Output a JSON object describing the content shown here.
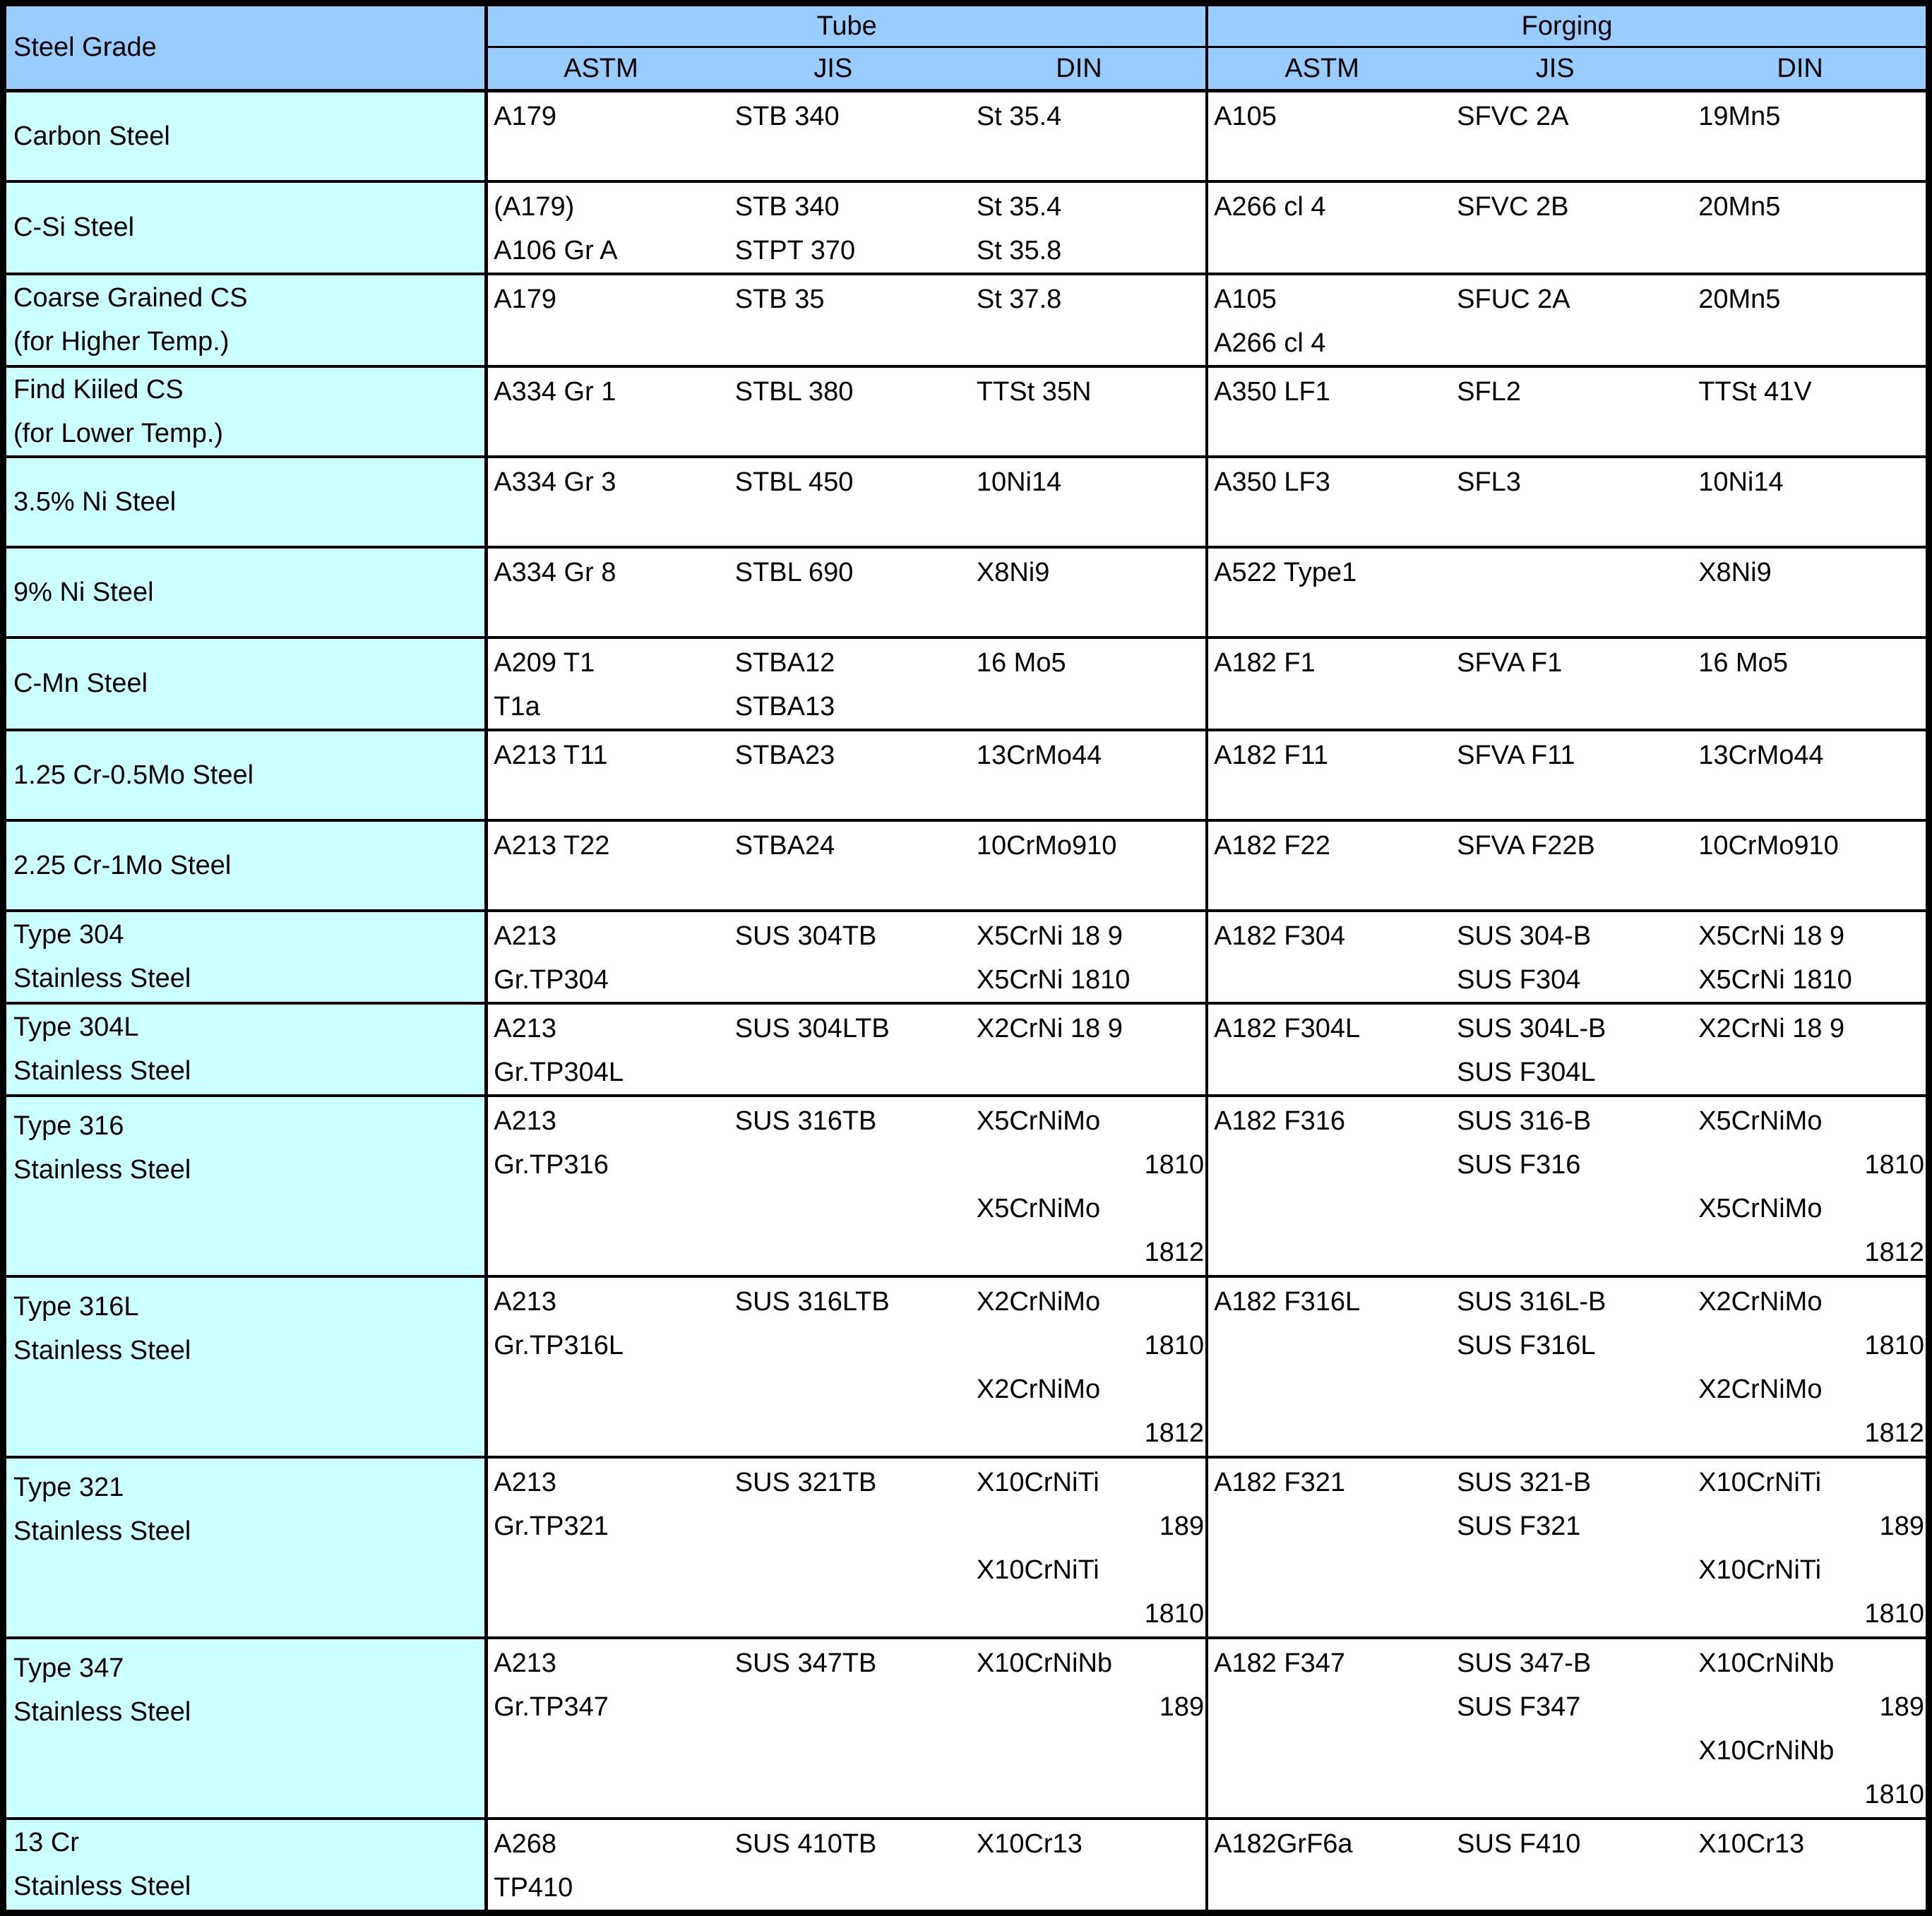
{
  "table": {
    "corner_header": "Steel Grade",
    "group_headers": [
      "Tube",
      "Forging"
    ],
    "subheaders": [
      "ASTM",
      "JIS",
      "DIN",
      "ASTM",
      "JIS",
      "DIN"
    ],
    "colors": {
      "header_bg": "#99CCFF",
      "label_bg": "#CCFFFF",
      "grid": "#000000",
      "text": "#000000"
    },
    "rows": [
      {
        "label_lines": [
          "Carbon Steel"
        ],
        "cells": [
          [
            "A179"
          ],
          [
            "STB 340"
          ],
          [
            "St 35.4"
          ],
          [
            "A105"
          ],
          [
            "SFVC 2A"
          ],
          [
            "19Mn5"
          ]
        ]
      },
      {
        "label_lines": [
          "C-Si Steel"
        ],
        "cells": [
          [
            "(A179)",
            "A106 Gr A"
          ],
          [
            "STB 340",
            "STPT 370"
          ],
          [
            "St 35.4",
            "St 35.8"
          ],
          [
            "A266 cl 4"
          ],
          [
            "SFVC 2B"
          ],
          [
            "20Mn5"
          ]
        ]
      },
      {
        "label_lines": [
          "Coarse Grained CS",
          "(for Higher Temp.)"
        ],
        "cells": [
          [
            "A179"
          ],
          [
            "STB 35"
          ],
          [
            "St 37.8"
          ],
          [
            "A105",
            "A266 cl 4"
          ],
          [
            "SFUC 2A"
          ],
          [
            "20Mn5"
          ]
        ]
      },
      {
        "label_lines": [
          "Find Kiiled CS",
          "(for Lower Temp.)"
        ],
        "cells": [
          [
            "A334 Gr 1"
          ],
          [
            "STBL 380"
          ],
          [
            "TTSt 35N"
          ],
          [
            "A350 LF1"
          ],
          [
            "SFL2"
          ],
          [
            "TTSt 41V"
          ]
        ]
      },
      {
        "label_lines": [
          "3.5% Ni Steel"
        ],
        "cells": [
          [
            "A334 Gr 3"
          ],
          [
            "STBL 450"
          ],
          [
            "10Ni14"
          ],
          [
            "A350 LF3"
          ],
          [
            "SFL3"
          ],
          [
            "10Ni14"
          ]
        ]
      },
      {
        "label_lines": [
          "9% Ni Steel"
        ],
        "cells": [
          [
            "A334 Gr 8"
          ],
          [
            "STBL 690"
          ],
          [
            "X8Ni9"
          ],
          [
            "A522 Type1"
          ],
          [],
          [
            "X8Ni9"
          ]
        ]
      },
      {
        "label_lines": [
          "C-Mn Steel"
        ],
        "cells": [
          [
            "A209 T1",
            "T1a"
          ],
          [
            "STBA12",
            "STBA13"
          ],
          [
            "16 Mo5"
          ],
          [
            "A182 F1"
          ],
          [
            "SFVA F1"
          ],
          [
            "16 Mo5"
          ]
        ]
      },
      {
        "label_lines": [
          "1.25 Cr-0.5Mo Steel"
        ],
        "cells": [
          [
            "A213 T11"
          ],
          [
            "STBA23"
          ],
          [
            "13CrMo44"
          ],
          [
            "A182 F11"
          ],
          [
            "SFVA F11"
          ],
          [
            "13CrMo44"
          ]
        ]
      },
      {
        "label_lines": [
          "2.25 Cr-1Mo Steel"
        ],
        "cells": [
          [
            "A213 T22"
          ],
          [
            "STBA24"
          ],
          [
            "10CrMo910"
          ],
          [
            "A182 F22"
          ],
          [
            "SFVA F22B"
          ],
          [
            "10CrMo910"
          ]
        ]
      },
      {
        "label_lines": [
          "Type 304",
          "Stainless Steel"
        ],
        "cells": [
          [
            "A213",
            "Gr.TP304"
          ],
          [
            "SUS 304TB"
          ],
          [
            "X5CrNi 18 9",
            "X5CrNi 1810"
          ],
          [
            "A182 F304"
          ],
          [
            "SUS 304-B",
            "SUS F304"
          ],
          [
            "X5CrNi 18 9",
            "X5CrNi 1810"
          ]
        ]
      },
      {
        "label_lines": [
          "Type 304L",
          "Stainless Steel"
        ],
        "cells": [
          [
            "A213",
            "Gr.TP304L"
          ],
          [
            "SUS 304LTB"
          ],
          [
            "X2CrNi 18 9"
          ],
          [
            "A182 F304L"
          ],
          [
            "SUS 304L-B",
            "SUS F304L"
          ],
          [
            "X2CrNi 18 9"
          ]
        ]
      },
      {
        "label_lines": [
          "Type 316",
          "Stainless Steel"
        ],
        "cells": [
          [
            "A213",
            "Gr.TP316"
          ],
          [
            "SUS 316TB"
          ],
          [
            "X5CrNiMo",
            "1810",
            "X5CrNiMo",
            "1812"
          ],
          [
            "A182 F316"
          ],
          [
            "SUS 316-B",
            "SUS F316"
          ],
          [
            "X5CrNiMo",
            "1810",
            "X5CrNiMo",
            "1812"
          ]
        ]
      },
      {
        "label_lines": [
          "Type 316L",
          "Stainless Steel"
        ],
        "cells": [
          [
            "A213",
            "Gr.TP316L"
          ],
          [
            "SUS 316LTB"
          ],
          [
            "X2CrNiMo",
            "1810",
            "X2CrNiMo",
            "1812"
          ],
          [
            "A182 F316L"
          ],
          [
            "SUS 316L-B",
            "SUS F316L"
          ],
          [
            "X2CrNiMo",
            "1810",
            "X2CrNiMo",
            "1812"
          ]
        ]
      },
      {
        "label_lines": [
          "Type 321",
          "Stainless Steel"
        ],
        "cells": [
          [
            "A213",
            "Gr.TP321"
          ],
          [
            "SUS 321TB"
          ],
          [
            "X10CrNiTi",
            "189",
            "X10CrNiTi",
            "1810"
          ],
          [
            "A182 F321"
          ],
          [
            "SUS 321-B",
            "SUS F321"
          ],
          [
            "X10CrNiTi",
            "189",
            "X10CrNiTi",
            "1810"
          ]
        ]
      },
      {
        "label_lines": [
          "Type 347",
          "Stainless Steel"
        ],
        "cells": [
          [
            "A213",
            "Gr.TP347"
          ],
          [
            "SUS 347TB"
          ],
          [
            "X10CrNiNb",
            "189"
          ],
          [
            "A182 F347"
          ],
          [
            "SUS 347-B",
            "SUS F347"
          ],
          [
            "X10CrNiNb",
            "189",
            "X10CrNiNb",
            "1810"
          ]
        ]
      },
      {
        "label_lines": [
          "13 Cr",
          "Stainless Steel"
        ],
        "cells": [
          [
            "A268",
            "TP410"
          ],
          [
            "SUS 410TB"
          ],
          [
            "X10Cr13"
          ],
          [
            "A182GrF6a"
          ],
          [
            "SUS F410"
          ],
          [
            "X10Cr13"
          ]
        ]
      }
    ]
  }
}
